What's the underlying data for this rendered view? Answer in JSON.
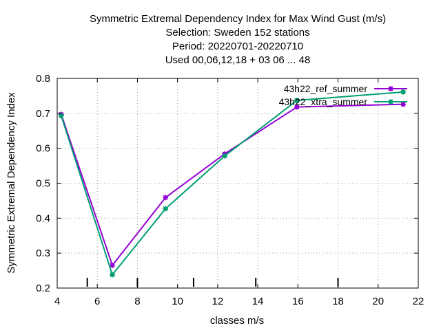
{
  "chart_data": {
    "type": "line",
    "title_lines": [
      "Symmetric Extremal Dependency Index  for Max Wind Gust (m/s)",
      "Selection: Sweden    152 stations",
      "Period: 20220701-20220710",
      "Used  00,06,12,18  + 03 06 ... 48"
    ],
    "xlabel": "classes m/s",
    "ylabel": "Symmetric Extremal Dependency Index",
    "xlim": [
      4,
      22
    ],
    "ylim": [
      0.2,
      0.8
    ],
    "xticks": [
      4,
      6,
      8,
      10,
      12,
      14,
      16,
      18,
      20,
      22
    ],
    "xtick_labels": [
      "4",
      "6",
      "8",
      "10",
      "12",
      "14",
      "16",
      "18",
      "20",
      "22"
    ],
    "yticks": [
      0.2,
      0.3,
      0.4,
      0.5,
      0.6,
      0.7,
      0.8
    ],
    "ytick_labels": [
      "0.2",
      "0.3",
      "0.4",
      "0.5",
      "0.6",
      "0.7",
      "0.8"
    ],
    "grid": true,
    "legend_position": "top-right",
    "class_markers_x": [
      5.5,
      8,
      10.8,
      13.9,
      18
    ],
    "series": [
      {
        "name": "43h22_ref_summer",
        "color": "#9400d3",
        "x": [
          4.2,
          6.75,
          9.4,
          12.35,
          15.95,
          21.25
        ],
        "y": [
          0.697,
          0.265,
          0.459,
          0.584,
          0.718,
          0.726
        ]
      },
      {
        "name": "43h22_xtra_summer",
        "color": "#009e73",
        "x": [
          4.2,
          6.75,
          9.4,
          12.35,
          15.95,
          21.25
        ],
        "y": [
          0.693,
          0.238,
          0.427,
          0.578,
          0.737,
          0.761
        ]
      }
    ]
  }
}
